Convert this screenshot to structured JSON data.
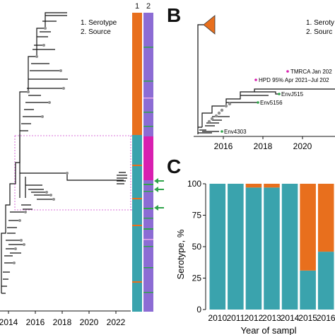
{
  "panelA": {
    "legend_1": "1. Serotype",
    "legend_2": "2. Source",
    "bar_headers": [
      "1",
      "2"
    ],
    "x_ticks": [
      "2014",
      "2016",
      "2018",
      "2020",
      "2022"
    ]
  },
  "panelB": {
    "letter": "B",
    "legend_1": "1. Seroty",
    "legend_2": "2. Sourc",
    "labels": {
      "tmrca": "TMRCA Jan 202",
      "hpd": "HPD 95% Apr 2021–Jul 202",
      "env_j515": "EnvJ515",
      "env_5156": "Env5156",
      "env_4303": "Env4303"
    },
    "x_ticks": [
      "2016",
      "2018",
      "2020"
    ]
  },
  "panelC": {
    "letter": "C",
    "ylabel": "Serotype, %",
    "xlabel": "Year of sampl",
    "y_ticks": [
      "100",
      "75",
      "50",
      "25",
      "0"
    ]
  },
  "colors": {
    "teal": "#3aa3ad",
    "orange": "#e86f1d",
    "purple": "#8c6cd4",
    "magenta": "#d81fb0",
    "green": "#2fa44a",
    "tree": "#111111",
    "node": "#8f8f8f",
    "box": "#cc44cc"
  },
  "chart_data": {
    "type": "bar",
    "categories": [
      "2010",
      "2011",
      "2012",
      "2013",
      "2014",
      "2015",
      "2016"
    ],
    "series": [
      {
        "values": [
          100,
          100,
          97,
          97,
          100,
          31,
          46
        ]
      },
      {
        "values": [
          0,
          0,
          3,
          3,
          0,
          69,
          54
        ]
      }
    ],
    "xlabel": "Year of sampl",
    "ylabel": "Serotype, %",
    "ylim": [
      0,
      100
    ]
  }
}
